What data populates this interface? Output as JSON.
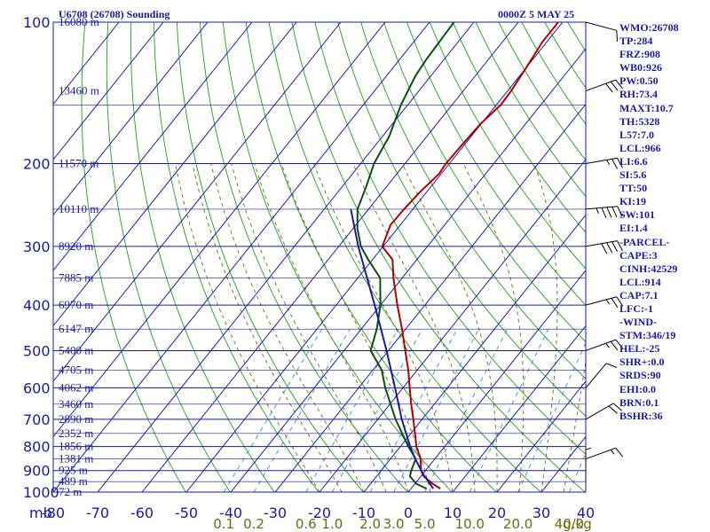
{
  "header": {
    "station": "U6708 (26708) Sounding",
    "valid_time": "0000Z  5 MAY 25"
  },
  "indices": [
    "WMO:26708",
    "TP:284",
    "FRZ:908",
    "WB0:926",
    "PW:0.50",
    "RH:73.4",
    "MAXT:10.7",
    "TH:5328",
    "L57:7.0",
    "LCL:966",
    "LI:6.6",
    "SI:5.6",
    "TT:50",
    "KI:19",
    "SW:101",
    "EI:1.4",
    "-PARCEL-",
    "CAPE:3",
    "CINH:42529",
    "LCL:914",
    "CAP:7.1",
    "LFC:-1",
    "-WIND-",
    "STM:346/19",
    "HEL:-25",
    "SHR+:0.0",
    "SRDS:90",
    "EHI:0.0",
    "BRN:0.1",
    "BSHR:36"
  ],
  "colors": {
    "isobar_grid": "#1a1aa0",
    "isotherm": "#1a1aa0",
    "dry_adiabat": "#1aa01a",
    "moist_adiabat": "#6b6b10",
    "mixing_ratio": "#3a8ad0",
    "temperature": "#b00000",
    "dewpoint": "#0a500a",
    "parcel": "#1a1aa0"
  },
  "chart_data": {
    "type": "line",
    "title": "U6708 (26708) Sounding",
    "xlabel": "",
    "ylabel": "mb",
    "pressure_levels": [
      100,
      200,
      300,
      400,
      500,
      600,
      700,
      800,
      900,
      1000
    ],
    "pressure_axis_labels": [
      "100",
      "200",
      "300",
      "400",
      "500",
      "600",
      "700",
      "800",
      "900",
      "1000"
    ],
    "pressure_axis_unit": "mb",
    "temperature_ticks": [
      -80,
      -70,
      -60,
      -50,
      -40,
      -30,
      -20,
      -10,
      0,
      10,
      20,
      30,
      40
    ],
    "temperature_tick_labels": [
      "-80",
      "-70",
      "-60",
      "-50",
      "-40",
      "-30",
      "-20",
      "-10",
      "0",
      "10",
      "20",
      "30",
      "40"
    ],
    "xlim": [
      -80,
      40
    ],
    "ylim": [
      1000,
      100
    ],
    "y_scale": "log",
    "skew": "45 degrees",
    "grid": true,
    "height_labels": [
      {
        "p": 100,
        "text": "16080 m"
      },
      {
        "p": 140,
        "text": "13460 m"
      },
      {
        "p": 200,
        "text": "11570 m"
      },
      {
        "p": 250,
        "text": "10110 m"
      },
      {
        "p": 300,
        "text": "8920 m"
      },
      {
        "p": 350,
        "text": "7885 m"
      },
      {
        "p": 400,
        "text": "6970 m"
      },
      {
        "p": 450,
        "text": "6147 m"
      },
      {
        "p": 500,
        "text": "5400 m"
      },
      {
        "p": 550,
        "text": "4705 m"
      },
      {
        "p": 600,
        "text": "4062 m"
      },
      {
        "p": 650,
        "text": "3460 m"
      },
      {
        "p": 700,
        "text": "2890 m"
      },
      {
        "p": 750,
        "text": "2352 m"
      },
      {
        "p": 800,
        "text": "1856 m"
      },
      {
        "p": 850,
        "text": "1381 m"
      },
      {
        "p": 900,
        "text": "925 m"
      },
      {
        "p": 950,
        "text": "489 m"
      },
      {
        "p": 1000,
        "text": "72 m"
      }
    ],
    "mixing_ratio_labels": [
      {
        "w": 0.1,
        "text": "0.1"
      },
      {
        "w": 0.2,
        "text": "0.2"
      },
      {
        "w": 0.6,
        "text": "0.6"
      },
      {
        "w": 1.0,
        "text": "1.0"
      },
      {
        "w": 2.0,
        "text": "2.0"
      },
      {
        "w": 3.0,
        "text": "3.0"
      },
      {
        "w": 5.0,
        "text": "5.0"
      },
      {
        "w": 10.0,
        "text": "10.0"
      },
      {
        "w": 20.0,
        "text": "20.0"
      },
      {
        "w": 40.0,
        "text": "40.0"
      }
    ],
    "mixing_ratio_unit": "g/kg",
    "series": [
      {
        "key": "temperature",
        "points": [
          {
            "p": 983,
            "t": 6.6
          },
          {
            "p": 960,
            "t": 4.0
          },
          {
            "p": 925,
            "t": 0.6
          },
          {
            "p": 900,
            "t": -1.0
          },
          {
            "p": 850,
            "t": -3.2
          },
          {
            "p": 800,
            "t": -6.4
          },
          {
            "p": 760,
            "t": -8.5
          },
          {
            "p": 700,
            "t": -12.0
          },
          {
            "p": 650,
            "t": -15.2
          },
          {
            "p": 600,
            "t": -18.5
          },
          {
            "p": 550,
            "t": -22.0
          },
          {
            "p": 500,
            "t": -26.2
          },
          {
            "p": 450,
            "t": -30.8
          },
          {
            "p": 400,
            "t": -36.2
          },
          {
            "p": 350,
            "t": -42.0
          },
          {
            "p": 320,
            "t": -45.5
          },
          {
            "p": 300,
            "t": -50.2
          },
          {
            "p": 270,
            "t": -52.2
          },
          {
            "p": 250,
            "t": -52.0
          },
          {
            "p": 230,
            "t": -51.5
          },
          {
            "p": 210,
            "t": -50.5
          },
          {
            "p": 200,
            "t": -50.8
          },
          {
            "p": 180,
            "t": -50.5
          },
          {
            "p": 165,
            "t": -50.2
          },
          {
            "p": 150,
            "t": -49.0
          },
          {
            "p": 140,
            "t": -49.2
          },
          {
            "p": 125,
            "t": -50.0
          },
          {
            "p": 110,
            "t": -51.0
          },
          {
            "p": 100,
            "t": -51.0
          }
        ]
      },
      {
        "key": "dewpoint",
        "points": [
          {
            "p": 983,
            "t": 3.5
          },
          {
            "p": 960,
            "t": 0.3
          },
          {
            "p": 925,
            "t": -2.5
          },
          {
            "p": 900,
            "t": -3.2
          },
          {
            "p": 850,
            "t": -4.3
          },
          {
            "p": 800,
            "t": -8.2
          },
          {
            "p": 700,
            "t": -16.0
          },
          {
            "p": 600,
            "t": -24.0
          },
          {
            "p": 550,
            "t": -28.0
          },
          {
            "p": 500,
            "t": -34.0
          },
          {
            "p": 450,
            "t": -36.5
          },
          {
            "p": 400,
            "t": -40.0
          },
          {
            "p": 350,
            "t": -45.0
          },
          {
            "p": 320,
            "t": -51.0
          },
          {
            "p": 300,
            "t": -55.0
          },
          {
            "p": 275,
            "t": -59.0
          },
          {
            "p": 250,
            "t": -62.5
          },
          {
            "p": 225,
            "t": -64.5
          },
          {
            "p": 200,
            "t": -67.0
          },
          {
            "p": 175,
            "t": -68.5
          },
          {
            "p": 150,
            "t": -71.5
          },
          {
            "p": 130,
            "t": -73.5
          },
          {
            "p": 120,
            "t": -74.0
          },
          {
            "p": 100,
            "t": -74.5
          }
        ]
      },
      {
        "key": "parcel",
        "points": [
          {
            "p": 983,
            "t": 5.0
          },
          {
            "p": 914,
            "t": 0.0
          },
          {
            "p": 850,
            "t": -4.4
          },
          {
            "p": 800,
            "t": -7.8
          },
          {
            "p": 700,
            "t": -14.6
          },
          {
            "p": 600,
            "t": -21.8
          },
          {
            "p": 500,
            "t": -30.4
          },
          {
            "p": 400,
            "t": -41.3
          },
          {
            "p": 300,
            "t": -55.6
          },
          {
            "p": 250,
            "t": -64.0
          }
        ]
      }
    ],
    "wind_barbs": [
      {
        "p": 100,
        "dir": 285,
        "spd": 10
      },
      {
        "p": 140,
        "dir": 250,
        "spd": 30
      },
      {
        "p": 200,
        "dir": 260,
        "spd": 25
      },
      {
        "p": 250,
        "dir": 265,
        "spd": 45
      },
      {
        "p": 300,
        "dir": 260,
        "spd": 40
      },
      {
        "p": 400,
        "dir": 255,
        "spd": 25
      },
      {
        "p": 500,
        "dir": 250,
        "spd": 25
      },
      {
        "p": 600,
        "dir": 220,
        "spd": 10
      },
      {
        "p": 700,
        "dir": 240,
        "spd": 20
      },
      {
        "p": 850,
        "dir": 250,
        "spd": 15
      },
      {
        "p": 950,
        "dir": 180,
        "spd": 5
      }
    ]
  }
}
